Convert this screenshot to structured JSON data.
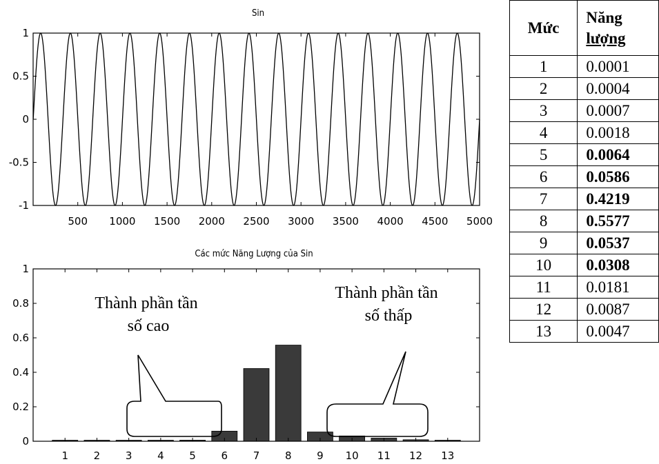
{
  "chart_data": [
    {
      "type": "line",
      "title": "Sin",
      "xlim": [
        0,
        5000
      ],
      "ylim": [
        -1,
        1
      ],
      "x_ticks": [
        "500",
        "1000",
        "1500",
        "2000",
        "2500",
        "3000",
        "3500",
        "4000",
        "4500",
        "5000"
      ],
      "y_ticks": [
        "1",
        "0.5",
        "0",
        "-0.5",
        "-1"
      ],
      "series": [
        {
          "function": "sin",
          "amplitude": 1,
          "cycles": 15,
          "x_start": 1,
          "x_end": 5000
        }
      ]
    },
    {
      "type": "bar",
      "title": "Các mức Năng Lượng của Sin",
      "categories": [
        "1",
        "2",
        "3",
        "4",
        "5",
        "6",
        "7",
        "8",
        "9",
        "10",
        "11",
        "12",
        "13"
      ],
      "values": [
        0.0001,
        0.0004,
        0.0007,
        0.0018,
        0.0064,
        0.0586,
        0.4219,
        0.5577,
        0.0537,
        0.0308,
        0.0181,
        0.0087,
        0.0047
      ],
      "ylim": [
        0,
        1
      ],
      "y_ticks": [
        "1",
        "0.8",
        "0.6",
        "0.4",
        "0.2",
        "0"
      ],
      "annotations": [
        {
          "text_line1": "Thành phần tần",
          "text_line2": "số cao",
          "bracket_from_level": 3,
          "bracket_to_level": 5
        },
        {
          "text_line1": "Thành phần tần",
          "text_line2": "số thấp",
          "bracket_from_level": 10,
          "bracket_to_level": 12
        }
      ]
    }
  ],
  "table": {
    "header_level": "Mức",
    "header_energy_line1": "Năng",
    "header_energy_line2": "lượng",
    "highlight_levels": [
      5,
      6,
      7,
      8,
      9,
      10
    ],
    "rows": [
      [
        "1",
        "0.0001"
      ],
      [
        "2",
        "0.0004"
      ],
      [
        "3",
        "0.0007"
      ],
      [
        "4",
        "0.0018"
      ],
      [
        "5",
        "0.0064"
      ],
      [
        "6",
        "0.0586"
      ],
      [
        "7",
        "0.4219"
      ],
      [
        "8",
        "0.5577"
      ],
      [
        "9",
        "0.0537"
      ],
      [
        "10",
        "0.0308"
      ],
      [
        "11",
        "0.0181"
      ],
      [
        "12",
        "0.0087"
      ],
      [
        "13",
        "0.0047"
      ]
    ]
  }
}
